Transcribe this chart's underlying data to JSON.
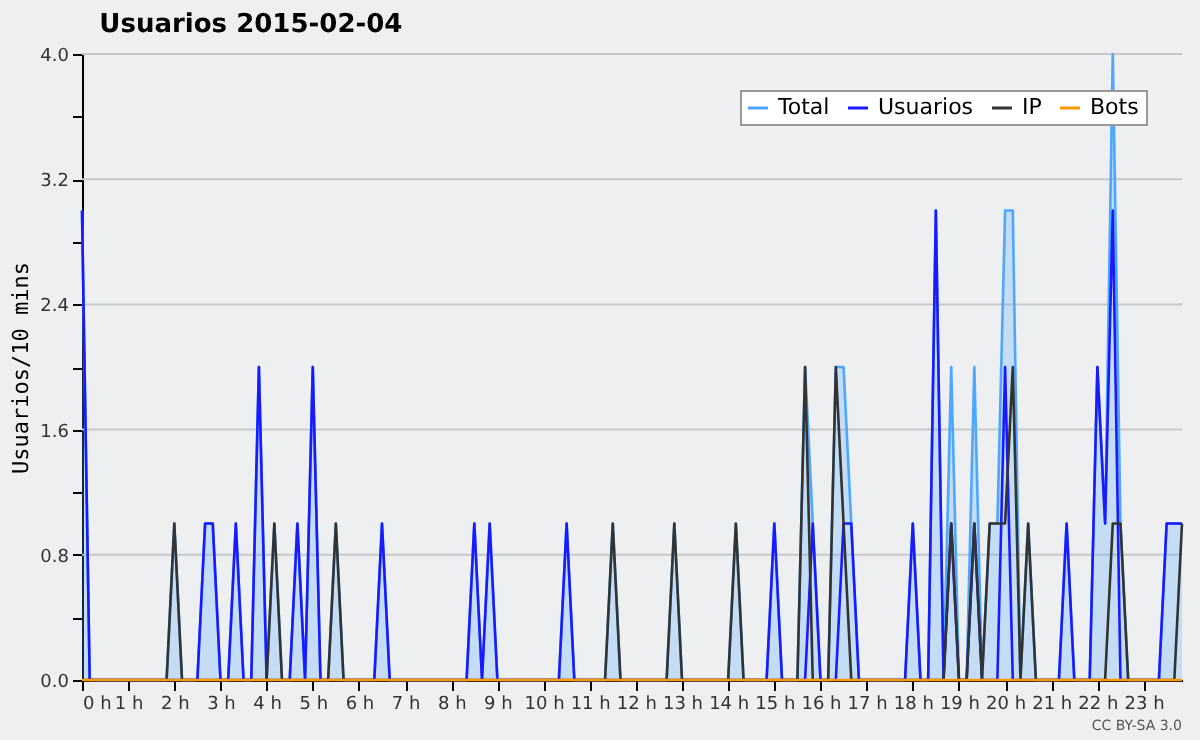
{
  "chart_data": {
    "type": "line",
    "title": "Usuarios  2015-02-04",
    "ylabel": "Usuarios/10 mins",
    "x": [
      0,
      0.167,
      0.333,
      0.5,
      0.667,
      0.833,
      1,
      1.167,
      1.333,
      1.5,
      1.667,
      1.833,
      2,
      2.167,
      2.333,
      2.5,
      2.667,
      2.833,
      3,
      3.167,
      3.333,
      3.5,
      3.667,
      3.833,
      4,
      4.167,
      4.333,
      4.5,
      4.667,
      4.833,
      5,
      5.167,
      5.333,
      5.5,
      5.667,
      5.833,
      6,
      6.167,
      6.333,
      6.5,
      6.667,
      6.833,
      7,
      7.167,
      7.333,
      7.5,
      7.667,
      7.833,
      8,
      8.167,
      8.333,
      8.5,
      8.667,
      8.833,
      9,
      9.167,
      9.333,
      9.5,
      9.667,
      9.833,
      10,
      10.167,
      10.333,
      10.5,
      10.667,
      10.833,
      11,
      11.167,
      11.333,
      11.5,
      11.667,
      11.833,
      12,
      12.167,
      12.333,
      12.5,
      12.667,
      12.833,
      13,
      13.167,
      13.333,
      13.5,
      13.667,
      13.833,
      14,
      14.167,
      14.333,
      14.5,
      14.667,
      14.833,
      15,
      15.167,
      15.333,
      15.5,
      15.667,
      15.833,
      16,
      16.167,
      16.333,
      16.5,
      16.667,
      16.833,
      17,
      17.167,
      17.333,
      17.5,
      17.667,
      17.833,
      18,
      18.167,
      18.333,
      18.5,
      18.667,
      18.833,
      19,
      19.167,
      19.333,
      19.5,
      19.667,
      19.833,
      20,
      20.167,
      20.333,
      20.5,
      20.667,
      20.833,
      21,
      21.167,
      21.333,
      21.5,
      21.667,
      21.833,
      22,
      22.167,
      22.333,
      22.5,
      22.667,
      22.833,
      23,
      23.167,
      23.333,
      23.5,
      23.667,
      23.833
    ],
    "series": [
      {
        "name": "Total",
        "type": "area",
        "color": "#4da6ff",
        "values": [
          3,
          0,
          0,
          0,
          0,
          0,
          0,
          0,
          0,
          0,
          0,
          0,
          1,
          0,
          0,
          0,
          1,
          1,
          0,
          0,
          1,
          0,
          0,
          2,
          0,
          1,
          0,
          0,
          1,
          0,
          2,
          0,
          0,
          1,
          0,
          0,
          0,
          0,
          0,
          1,
          0,
          0,
          0,
          0,
          0,
          0,
          0,
          0,
          0,
          0,
          0,
          1,
          0,
          1,
          0,
          0,
          0,
          0,
          0,
          0,
          0,
          0,
          0,
          1,
          0,
          0,
          0,
          0,
          0,
          1,
          0,
          0,
          0,
          0,
          0,
          0,
          0,
          1,
          0,
          0,
          0,
          0,
          0,
          0,
          0,
          1,
          0,
          0,
          0,
          0,
          1,
          0,
          0,
          0,
          2,
          1,
          0,
          0,
          2,
          2,
          1,
          0,
          0,
          0,
          0,
          0,
          0,
          0,
          1,
          0,
          0,
          3,
          0,
          2,
          0,
          0,
          2,
          0,
          1,
          1,
          3,
          3,
          0,
          1,
          0,
          0,
          0,
          0,
          1,
          0,
          0,
          0,
          2,
          1,
          4,
          1,
          0,
          0,
          0,
          0,
          0,
          1,
          1,
          1
        ]
      },
      {
        "name": "Usuarios",
        "color": "#1a1aff",
        "values": [
          3,
          0,
          0,
          0,
          0,
          0,
          0,
          0,
          0,
          0,
          0,
          0,
          0,
          0,
          0,
          0,
          1,
          1,
          0,
          0,
          1,
          0,
          0,
          2,
          0,
          0,
          0,
          0,
          1,
          0,
          2,
          0,
          0,
          0,
          0,
          0,
          0,
          0,
          0,
          1,
          0,
          0,
          0,
          0,
          0,
          0,
          0,
          0,
          0,
          0,
          0,
          1,
          0,
          1,
          0,
          0,
          0,
          0,
          0,
          0,
          0,
          0,
          0,
          1,
          0,
          0,
          0,
          0,
          0,
          0,
          0,
          0,
          0,
          0,
          0,
          0,
          0,
          0,
          0,
          0,
          0,
          0,
          0,
          0,
          0,
          0,
          0,
          0,
          0,
          0,
          1,
          0,
          0,
          0,
          0,
          1,
          0,
          0,
          0,
          1,
          1,
          0,
          0,
          0,
          0,
          0,
          0,
          0,
          1,
          0,
          0,
          3,
          0,
          1,
          0,
          0,
          1,
          0,
          0,
          0,
          2,
          0,
          0,
          0,
          0,
          0,
          0,
          0,
          1,
          0,
          0,
          0,
          2,
          1,
          3,
          0,
          0,
          0,
          0,
          0,
          0,
          1,
          1,
          1
        ]
      },
      {
        "name": "IP",
        "color": "#333333",
        "values": [
          0,
          0,
          0,
          0,
          0,
          0,
          0,
          0,
          0,
          0,
          0,
          0,
          1,
          0,
          0,
          0,
          0,
          0,
          0,
          0,
          0,
          0,
          0,
          0,
          0,
          1,
          0,
          0,
          0,
          0,
          0,
          0,
          0,
          1,
          0,
          0,
          0,
          0,
          0,
          0,
          0,
          0,
          0,
          0,
          0,
          0,
          0,
          0,
          0,
          0,
          0,
          0,
          0,
          0,
          0,
          0,
          0,
          0,
          0,
          0,
          0,
          0,
          0,
          0,
          0,
          0,
          0,
          0,
          0,
          1,
          0,
          0,
          0,
          0,
          0,
          0,
          0,
          1,
          0,
          0,
          0,
          0,
          0,
          0,
          0,
          1,
          0,
          0,
          0,
          0,
          0,
          0,
          0,
          0,
          2,
          0,
          0,
          0,
          2,
          1,
          0,
          0,
          0,
          0,
          0,
          0,
          0,
          0,
          0,
          0,
          0,
          0,
          0,
          1,
          0,
          0,
          1,
          0,
          1,
          1,
          1,
          2,
          0,
          1,
          0,
          0,
          0,
          0,
          0,
          0,
          0,
          0,
          0,
          0,
          1,
          1,
          0,
          0,
          0,
          0,
          0,
          0,
          0,
          1
        ]
      },
      {
        "name": "Bots",
        "color": "#ff9900",
        "values": [
          0,
          0,
          0,
          0,
          0,
          0,
          0,
          0,
          0,
          0,
          0,
          0,
          0,
          0,
          0,
          0,
          0,
          0,
          0,
          0,
          0,
          0,
          0,
          0,
          0,
          0,
          0,
          0,
          0,
          0,
          0,
          0,
          0,
          0,
          0,
          0,
          0,
          0,
          0,
          0,
          0,
          0,
          0,
          0,
          0,
          0,
          0,
          0,
          0,
          0,
          0,
          0,
          0,
          0,
          0,
          0,
          0,
          0,
          0,
          0,
          0,
          0,
          0,
          0,
          0,
          0,
          0,
          0,
          0,
          0,
          0,
          0,
          0,
          0,
          0,
          0,
          0,
          0,
          0,
          0,
          0,
          0,
          0,
          0,
          0,
          0,
          0,
          0,
          0,
          0,
          0,
          0,
          0,
          0,
          0,
          0,
          0,
          0,
          0,
          0,
          0,
          0,
          0,
          0,
          0,
          0,
          0,
          0,
          0,
          0,
          0,
          0,
          0,
          0,
          0,
          0,
          0,
          0,
          0,
          0,
          0,
          0,
          0,
          0,
          0,
          0,
          0,
          0,
          0,
          0,
          0,
          0,
          0,
          0,
          0,
          0,
          0,
          0,
          0,
          0,
          0,
          0,
          0,
          0
        ]
      }
    ],
    "xlim": [
      0,
      23.833
    ],
    "xticks": [
      {
        "value": 0,
        "label": "0 h"
      },
      {
        "value": 1,
        "label": "1 h"
      },
      {
        "value": 2,
        "label": "2 h"
      },
      {
        "value": 3,
        "label": "3 h"
      },
      {
        "value": 4,
        "label": "4 h"
      },
      {
        "value": 5,
        "label": "5 h"
      },
      {
        "value": 6,
        "label": "6 h"
      },
      {
        "value": 7,
        "label": "7 h"
      },
      {
        "value": 8,
        "label": "8 h"
      },
      {
        "value": 9,
        "label": "9 h"
      },
      {
        "value": 10,
        "label": "10 h"
      },
      {
        "value": 11,
        "label": "11 h"
      },
      {
        "value": 12,
        "label": "12 h"
      },
      {
        "value": 13,
        "label": "13 h"
      },
      {
        "value": 14,
        "label": "14 h"
      },
      {
        "value": 15,
        "label": "15 h"
      },
      {
        "value": 16,
        "label": "16 h"
      },
      {
        "value": 17,
        "label": "17 h"
      },
      {
        "value": 18,
        "label": "18 h"
      },
      {
        "value": 19,
        "label": "19 h"
      },
      {
        "value": 20,
        "label": "20 h"
      },
      {
        "value": 21,
        "label": "21 h"
      },
      {
        "value": 22,
        "label": "22 h"
      },
      {
        "value": 23,
        "label": "23 h"
      }
    ],
    "ylim": [
      0,
      4
    ],
    "yticks": [
      {
        "value": 0,
        "label": "0.0"
      },
      {
        "value": 0.4,
        "label": null
      },
      {
        "value": 0.8,
        "label": "0.8"
      },
      {
        "value": 1.2,
        "label": null
      },
      {
        "value": 1.6,
        "label": "1.6"
      },
      {
        "value": 2,
        "label": null
      },
      {
        "value": 2.4,
        "label": "2.4"
      },
      {
        "value": 2.8,
        "label": null
      },
      {
        "value": 3.2,
        "label": "3.2"
      },
      {
        "value": 3.6,
        "label": null
      },
      {
        "value": 4,
        "label": "4.0"
      }
    ],
    "grid": "y",
    "legend": "top right",
    "marker": "none",
    "line_style": "solid",
    "annotations": [
      "CC BY-SA 3.0"
    ]
  }
}
